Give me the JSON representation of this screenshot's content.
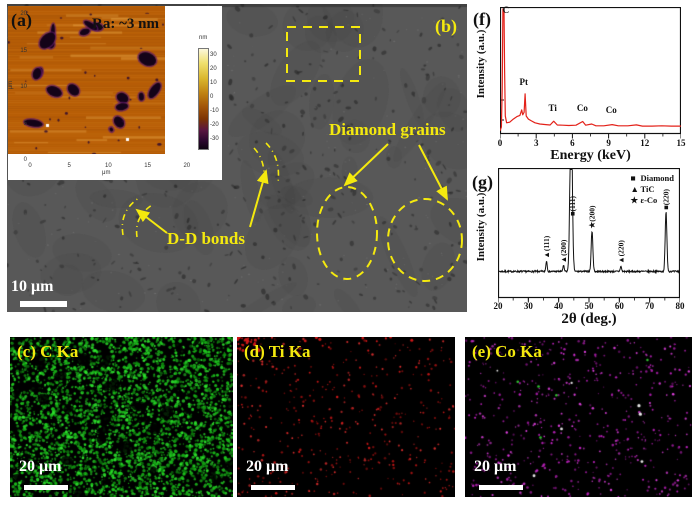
{
  "panel_a": {
    "label": "(a)",
    "roughness_text": "Ra: ~3 nm",
    "x_ticks": [
      "0",
      "5",
      "10",
      "15",
      "20"
    ],
    "y_ticks": [
      "20",
      "15",
      "10",
      "5",
      "0"
    ],
    "x_axis_unit": "μm",
    "y_axis_unit": "μm",
    "colorbar": {
      "unit": "nm",
      "ticks": [
        "30",
        "20",
        "10",
        "0",
        "-10",
        "-20",
        "-30"
      ]
    },
    "map_base_color": "#b95f07"
  },
  "panel_b": {
    "label": "(b)",
    "annotation_dd_bonds": "D-D bonds",
    "annotation_diamond_grains": "Diamond grains",
    "scalebar_text": "10 μm",
    "annotation_color": "#f4e90e",
    "background_color": "#585858"
  },
  "panel_c": {
    "label": "(c) C Ka",
    "scalebar_text": "20 μm",
    "dot_color": "#1ec81e"
  },
  "panel_d": {
    "label": "(d) Ti Ka",
    "scalebar_text": "20 μm",
    "dot_color": "#d01818"
  },
  "panel_e": {
    "label": "(e) Co Ka",
    "scalebar_text": "20 μm",
    "dot_color": "#c622c6"
  },
  "chart_data": [
    {
      "id": "eds-spectrum",
      "panel_label": "(f)",
      "type": "line",
      "xlabel": "Energy (keV)",
      "ylabel": "Intensity (a.u.)",
      "xlim": [
        0,
        15
      ],
      "x_ticks": [
        0,
        3,
        6,
        9,
        12,
        15
      ],
      "grid": false,
      "line_color": "#e32119",
      "points": [
        [
          0,
          0.01
        ],
        [
          0.12,
          0.04
        ],
        [
          0.18,
          0.35
        ],
        [
          0.24,
          1
        ],
        [
          0.33,
          1
        ],
        [
          0.38,
          0.5
        ],
        [
          0.44,
          0.13
        ],
        [
          0.55,
          0.075
        ],
        [
          0.8,
          0.08
        ],
        [
          1.1,
          0.105
        ],
        [
          1.4,
          0.125
        ],
        [
          1.65,
          0.135
        ],
        [
          1.8,
          0.18
        ],
        [
          1.88,
          0.14
        ],
        [
          2.0,
          0.16
        ],
        [
          2.08,
          0.31
        ],
        [
          2.17,
          0.13
        ],
        [
          2.35,
          0.105
        ],
        [
          2.6,
          0.09
        ],
        [
          2.9,
          0.075
        ],
        [
          3.3,
          0.065
        ],
        [
          3.8,
          0.06
        ],
        [
          4.15,
          0.057
        ],
        [
          4.45,
          0.088
        ],
        [
          4.75,
          0.057
        ],
        [
          5.2,
          0.055
        ],
        [
          5.7,
          0.053
        ],
        [
          6.3,
          0.055
        ],
        [
          6.85,
          0.085
        ],
        [
          7.1,
          0.055
        ],
        [
          7.6,
          0.065
        ],
        [
          7.95,
          0.05
        ],
        [
          8.6,
          0.05
        ],
        [
          9.3,
          0.06
        ],
        [
          9.8,
          0.05
        ],
        [
          10.6,
          0.05
        ],
        [
          11.3,
          0.058
        ],
        [
          11.8,
          0.048
        ],
        [
          12.6,
          0.048
        ],
        [
          13.4,
          0.05
        ],
        [
          14.2,
          0.048
        ],
        [
          15,
          0.048
        ]
      ],
      "peak_labels": [
        {
          "text": "C",
          "x": 0.55,
          "y": 0.93
        },
        {
          "text": "Pt",
          "x": 1.95,
          "y": 0.36
        },
        {
          "text": "Ti",
          "x": 4.35,
          "y": 0.155
        },
        {
          "text": "Co",
          "x": 6.7,
          "y": 0.155
        },
        {
          "text": "Co",
          "x": 9.1,
          "y": 0.145
        }
      ]
    },
    {
      "id": "xrd-pattern",
      "panel_label": "(g)",
      "type": "line",
      "xlabel": "2θ (deg.)",
      "ylabel": "Intensity (a.u.)",
      "xlim": [
        20,
        80
      ],
      "x_ticks": [
        20,
        30,
        40,
        50,
        60,
        70,
        80
      ],
      "grid": false,
      "line_color": "#111111",
      "legend_position": "top-right",
      "legend": [
        {
          "symbol": "■",
          "label": "Diamond"
        },
        {
          "symbol": "▲",
          "label": "TiC"
        },
        {
          "symbol": "★",
          "label": "ε-Co"
        }
      ],
      "peaks": [
        {
          "two_theta": 36.0,
          "height": 0.1,
          "symbol": "▲",
          "hkl": "(111)"
        },
        {
          "two_theta": 41.6,
          "height": 0.055,
          "symbol": "▲",
          "hkl": "(200)"
        },
        {
          "two_theta": 44.1,
          "height": 1.6,
          "symbol": "■",
          "hkl": "(111)"
        },
        {
          "two_theta": 51.0,
          "height": 0.39,
          "symbol": "★",
          "hkl": "(200)"
        },
        {
          "two_theta": 60.5,
          "height": 0.05,
          "symbol": "▲",
          "hkl": "(220)"
        },
        {
          "two_theta": 75.4,
          "height": 0.57,
          "symbol": "■",
          "hkl": "(220)"
        }
      ]
    }
  ]
}
